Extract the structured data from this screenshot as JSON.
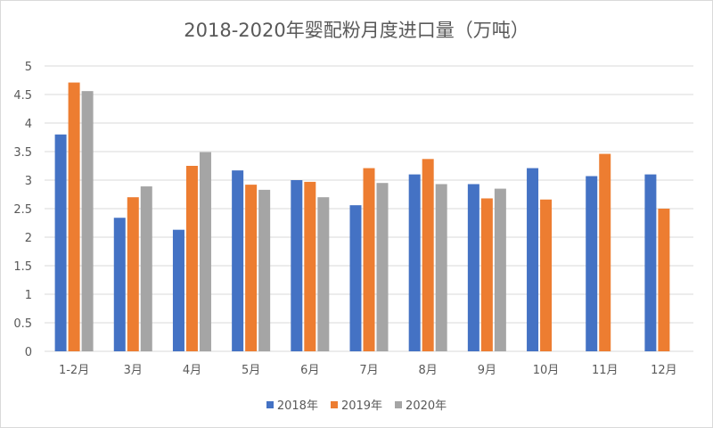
{
  "chart_data": {
    "type": "bar",
    "title": "2018-2020年婴配粉月度进口量（万吨）",
    "categories": [
      "1-2月",
      "3月",
      "4月",
      "5月",
      "6月",
      "7月",
      "8月",
      "9月",
      "10月",
      "11月",
      "12月"
    ],
    "series": [
      {
        "name": "2018年",
        "color": "#4472c4",
        "values": [
          3.8,
          2.34,
          2.13,
          3.17,
          3.0,
          2.56,
          3.1,
          2.93,
          3.21,
          3.07,
          3.1
        ]
      },
      {
        "name": "2019年",
        "color": "#ed7d31",
        "values": [
          4.71,
          2.7,
          3.25,
          2.92,
          2.97,
          3.21,
          3.37,
          2.68,
          2.66,
          3.46,
          2.5
        ]
      },
      {
        "name": "2020年",
        "color": "#a5a5a5",
        "values": [
          4.56,
          2.89,
          3.49,
          2.83,
          2.7,
          2.95,
          2.93,
          2.85,
          null,
          null,
          null
        ]
      }
    ],
    "ylim": [
      0,
      5
    ],
    "yticks": [
      "0",
      "0.5",
      "1",
      "1.5",
      "2",
      "2.5",
      "3",
      "3.5",
      "4",
      "4.5",
      "5"
    ],
    "xlabel": "",
    "ylabel": "",
    "grid": true,
    "legend": "bottom"
  }
}
